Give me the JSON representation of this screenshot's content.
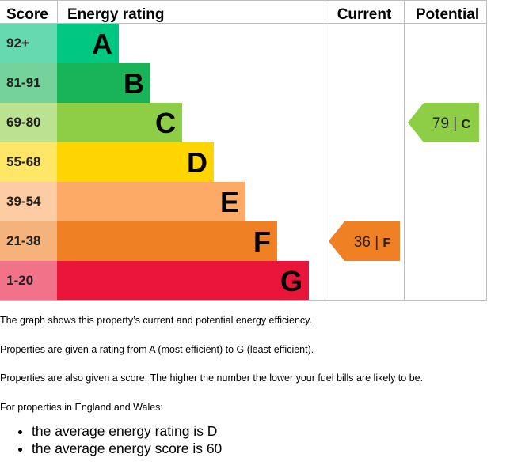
{
  "header": {
    "score": "Score",
    "energy_rating": "Energy rating",
    "current": "Current",
    "potential": "Potential"
  },
  "chart_data": {
    "type": "bar",
    "title": "",
    "bands": [
      {
        "score_range": "92+",
        "letter": "A",
        "color": "#00c781",
        "score_bg": "#66d9b0"
      },
      {
        "score_range": "81-91",
        "letter": "B",
        "color": "#19b459",
        "score_bg": "#75d29b"
      },
      {
        "score_range": "69-80",
        "letter": "C",
        "color": "#8dce46",
        "score_bg": "#bbe290"
      },
      {
        "score_range": "55-68",
        "letter": "D",
        "color": "#ffd500",
        "score_bg": "#ffe666"
      },
      {
        "score_range": "39-54",
        "letter": "E",
        "color": "#fcaa65",
        "score_bg": "#fdcca3"
      },
      {
        "score_range": "21-38",
        "letter": "F",
        "color": "#ef8023",
        "score_bg": "#f5b27b"
      },
      {
        "score_range": "1-20",
        "letter": "G",
        "color": "#e9153b",
        "score_bg": "#f27389"
      }
    ],
    "current": {
      "score": "36",
      "letter": "F",
      "color": "#ef8023"
    },
    "potential": {
      "score": "79",
      "letter": "C",
      "color": "#8dce46"
    }
  },
  "text": {
    "p1": "The graph shows this property’s current and potential energy efficiency.",
    "p2": "Properties are given a rating from A (most efficient) to G (least efficient).",
    "p3": "Properties are also given a score. The higher the number the lower your fuel bills are likely to be.",
    "p4": "For properties in England and Wales:",
    "bullets": [
      "the average energy rating is D",
      "the average energy score is 60"
    ]
  }
}
